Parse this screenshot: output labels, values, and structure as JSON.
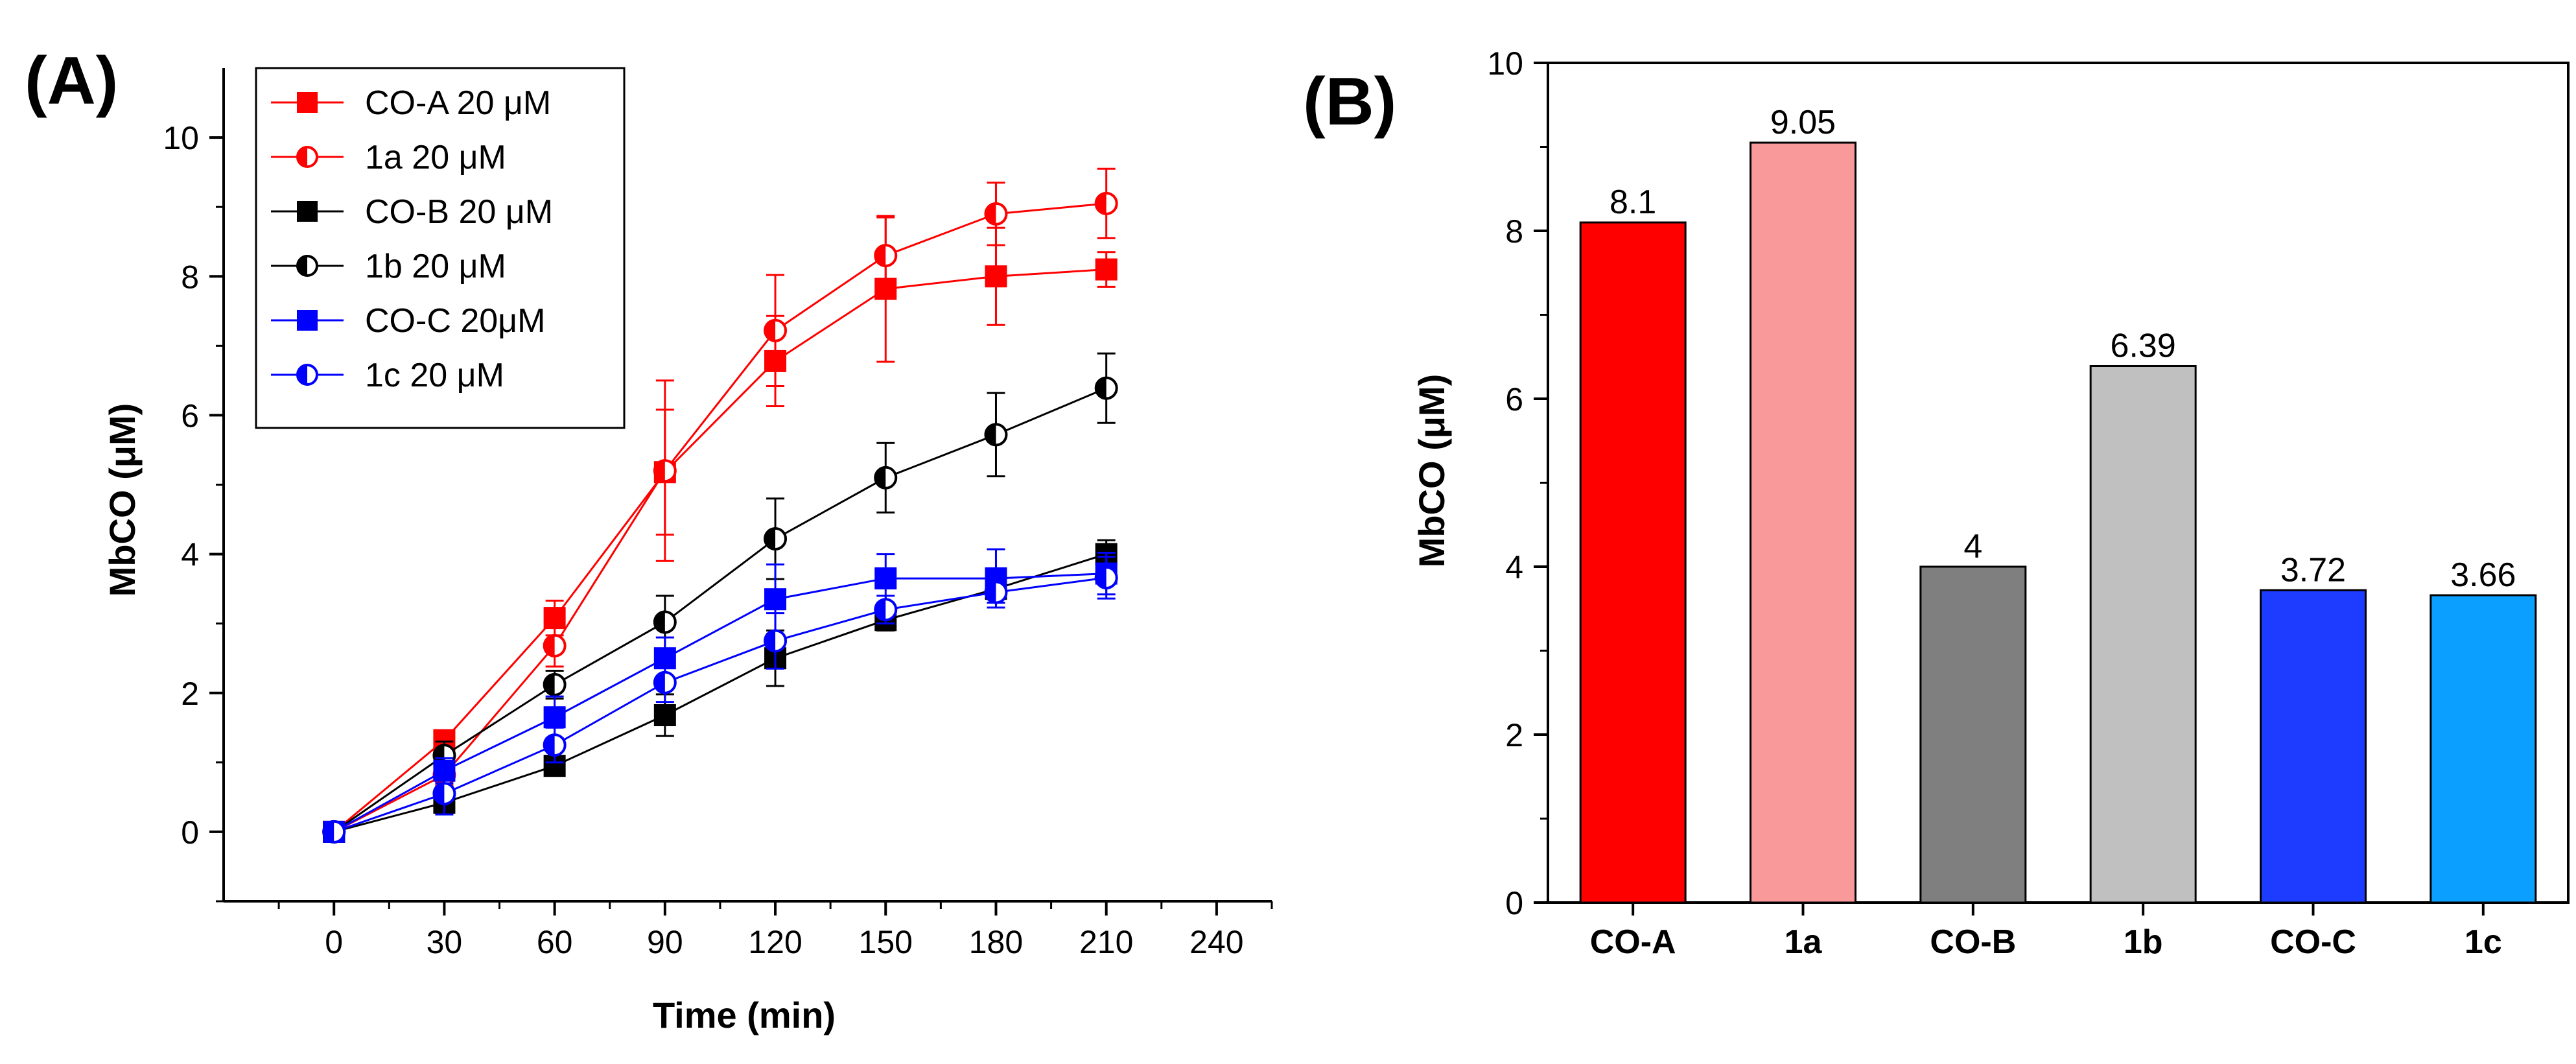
{
  "chart_data": [
    {
      "panel": "(A)",
      "type": "line",
      "xlabel": "Time (min)",
      "ylabel": "MbCO (μM)",
      "xlim": [
        -30,
        255
      ],
      "ylim": [
        -1,
        11
      ],
      "xticks": [
        0,
        30,
        60,
        90,
        120,
        150,
        180,
        210,
        240
      ],
      "yticks": [
        0,
        2,
        4,
        6,
        8,
        10
      ],
      "x": [
        0,
        30,
        60,
        90,
        120,
        150,
        180,
        210
      ],
      "legend_position": "top-left",
      "series": [
        {
          "name": "CO-A 20 μM",
          "color": "#ff0000",
          "marker": "square",
          "values": [
            0,
            1.32,
            3.08,
            5.18,
            6.78,
            7.82,
            8.0,
            8.1
          ],
          "errors": [
            0.05,
            0.1,
            0.25,
            0.9,
            0.65,
            1.05,
            0.7,
            0.25
          ]
        },
        {
          "name": "1a 20 μM",
          "color": "#ff0000",
          "marker": "half-circle",
          "values": [
            0,
            0.82,
            2.68,
            5.2,
            7.22,
            8.3,
            8.9,
            9.05
          ],
          "errors": [
            0.05,
            0.15,
            0.3,
            1.3,
            0.8,
            0.55,
            0.45,
            0.5
          ]
        },
        {
          "name": "CO-B 20 μM",
          "color": "#000000",
          "marker": "square",
          "values": [
            0,
            0.42,
            0.95,
            1.68,
            2.5,
            3.05,
            3.5,
            4.0
          ],
          "errors": [
            0.05,
            0.12,
            0.12,
            0.3,
            0.4,
            0.15,
            0.2,
            0.2
          ]
        },
        {
          "name": "1b 20 μM",
          "color": "#000000",
          "marker": "half-circle",
          "values": [
            0,
            1.1,
            2.12,
            3.02,
            4.22,
            5.1,
            5.72,
            6.39
          ],
          "errors": [
            0.05,
            0.2,
            0.2,
            0.38,
            0.58,
            0.5,
            0.6,
            0.5
          ]
        },
        {
          "name": "CO-C 20μM",
          "color": "#0000ff",
          "marker": "square",
          "values": [
            0,
            0.88,
            1.65,
            2.5,
            3.35,
            3.65,
            3.65,
            3.72
          ],
          "errors": [
            0.05,
            0.18,
            0.3,
            0.3,
            0.5,
            0.35,
            0.42,
            0.3
          ]
        },
        {
          "name": "1c 20 μM",
          "color": "#0000ff",
          "marker": "half-circle",
          "values": [
            0,
            0.55,
            1.25,
            2.15,
            2.75,
            3.2,
            3.45,
            3.66
          ],
          "errors": [
            0.05,
            0.3,
            0.25,
            0.28,
            0.4,
            0.2,
            0.15,
            0.3
          ]
        }
      ]
    },
    {
      "panel": "(B)",
      "type": "bar",
      "ylabel": "MbCO (μM)",
      "ylim": [
        0,
        10
      ],
      "yticks": [
        0,
        2,
        4,
        6,
        8,
        10
      ],
      "categories": [
        "CO-A",
        "1a",
        "CO-B",
        "1b",
        "CO-C",
        "1c"
      ],
      "values": [
        8.1,
        9.05,
        4.0,
        6.39,
        3.72,
        3.66
      ],
      "value_labels": [
        "8.1",
        "9.05",
        "4",
        "6.39",
        "3.72",
        "3.66"
      ],
      "colors": [
        "#ff0000",
        "#fa9999",
        "#7f7f7f",
        "#c0c0c0",
        "#1e3cff",
        "#0ba0ff"
      ]
    }
  ]
}
